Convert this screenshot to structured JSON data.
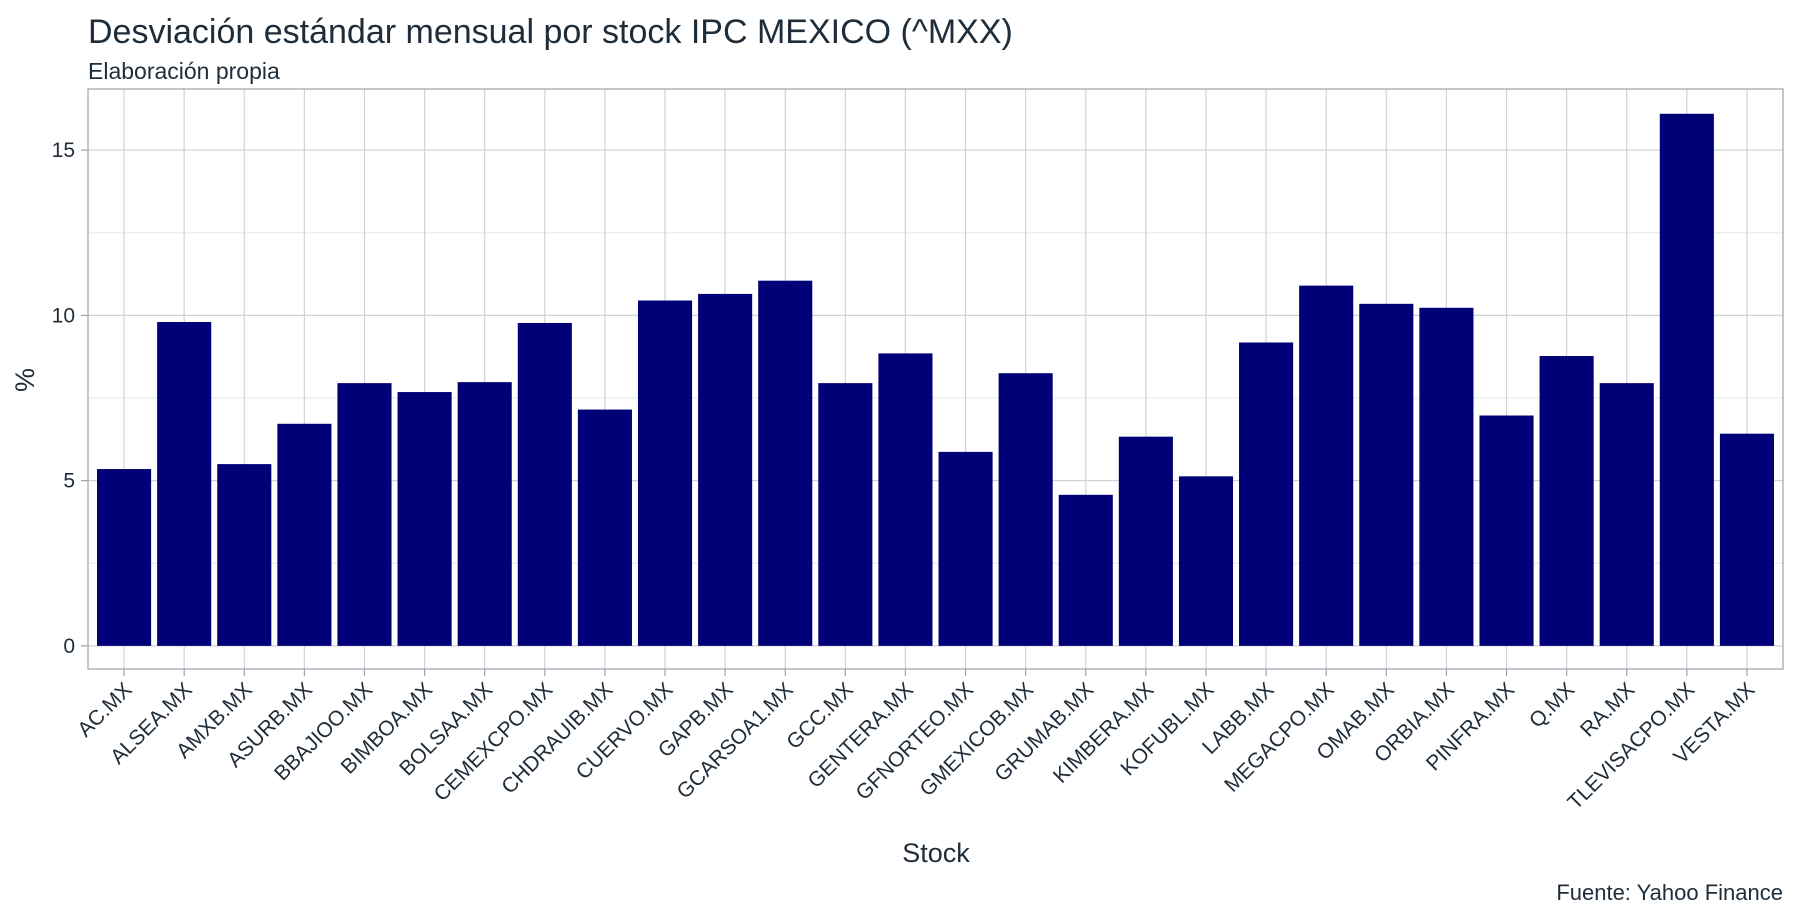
{
  "chart_data": {
    "type": "bar",
    "title": "Desviación estándar mensual por stock IPC MEXICO (^MXX)",
    "subtitle": "Elaboración propia",
    "caption": "Fuente: Yahoo Finance",
    "xlabel": "Stock",
    "ylabel": "%",
    "categories": [
      "AC.MX",
      "ALSEA.MX",
      "AMXB.MX",
      "ASURB.MX",
      "BBAJIOO.MX",
      "BIMBOA.MX",
      "BOLSAA.MX",
      "CEMEXCPO.MX",
      "CHDRAUIB.MX",
      "CUERVO.MX",
      "GAPB.MX",
      "GCARSOA1.MX",
      "GCC.MX",
      "GENTERA.MX",
      "GFNORTEO.MX",
      "GMEXICOB.MX",
      "GRUMAB.MX",
      "KIMBERA.MX",
      "KOFUBL.MX",
      "LABB.MX",
      "MEGACPO.MX",
      "OMAB.MX",
      "ORBIA.MX",
      "PINFRA.MX",
      "Q.MX",
      "RA.MX",
      "TLEVISACPO.MX",
      "VESTA.MX"
    ],
    "values": [
      5.35,
      9.8,
      5.5,
      6.72,
      7.95,
      7.68,
      7.98,
      9.77,
      7.15,
      10.45,
      10.65,
      11.05,
      7.95,
      8.85,
      5.87,
      8.25,
      4.57,
      6.33,
      5.13,
      9.18,
      10.9,
      10.35,
      10.23,
      6.97,
      8.77,
      7.95,
      16.1,
      6.42
    ],
    "yticks": [
      0,
      5,
      10,
      15
    ],
    "ylim": [
      -0.7,
      16.85
    ],
    "bar_color": "#000077",
    "grid": true,
    "legend": "none"
  }
}
